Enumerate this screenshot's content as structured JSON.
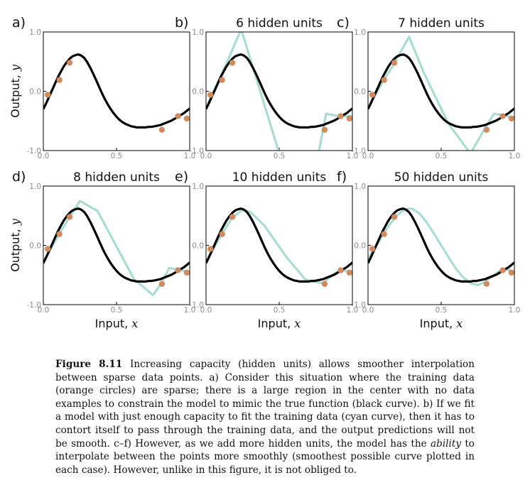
{
  "chart_data": {
    "type": "line",
    "xlim": [
      0,
      1
    ],
    "ylim": [
      -1,
      1
    ],
    "x_ticks": [
      "0.0",
      "0.5",
      "1.0"
    ],
    "y_ticks": [
      "1.0",
      "0.0",
      "-1.0"
    ],
    "xlabel": "Input, ",
    "xlabel_var": "x",
    "ylabel": "Output, ",
    "ylabel_var": "y",
    "true_function": {
      "color": "#000000",
      "x": [
        0,
        0.02,
        0.04,
        0.06,
        0.08,
        0.1,
        0.12,
        0.14,
        0.16,
        0.18,
        0.2,
        0.22,
        0.24,
        0.26,
        0.28,
        0.3,
        0.32,
        0.34,
        0.36,
        0.38,
        0.4,
        0.42,
        0.44,
        0.46,
        0.48,
        0.5,
        0.52,
        0.54,
        0.56,
        0.58,
        0.6,
        0.62,
        0.64,
        0.66,
        0.68,
        0.7,
        0.72,
        0.74,
        0.76,
        0.78,
        0.8,
        0.82,
        0.84,
        0.86,
        0.88,
        0.9,
        0.92,
        0.94,
        0.96,
        0.98,
        1.0
      ],
      "y": [
        -0.3,
        -0.2,
        -0.09,
        0.02,
        0.13,
        0.24,
        0.33,
        0.42,
        0.49,
        0.55,
        0.59,
        0.61,
        0.62,
        0.6,
        0.56,
        0.49,
        0.4,
        0.3,
        0.19,
        0.08,
        -0.03,
        -0.13,
        -0.22,
        -0.3,
        -0.37,
        -0.43,
        -0.48,
        -0.52,
        -0.55,
        -0.57,
        -0.59,
        -0.6,
        -0.61,
        -0.61,
        -0.61,
        -0.61,
        -0.6,
        -0.6,
        -0.59,
        -0.58,
        -0.57,
        -0.55,
        -0.53,
        -0.51,
        -0.49,
        -0.46,
        -0.43,
        -0.4,
        -0.37,
        -0.33,
        -0.29
      ]
    },
    "training_data": {
      "color": "#d08a5f",
      "x": [
        0.03,
        0.11,
        0.18,
        0.81,
        0.92,
        0.98
      ],
      "y": [
        -0.06,
        0.19,
        0.48,
        -0.65,
        -0.42,
        -0.46
      ]
    },
    "model_color": "#a9ddd2",
    "panels": [
      {
        "letter": "a)",
        "title": "",
        "model": null
      },
      {
        "letter": "b)",
        "title": "6 hidden units",
        "model": {
          "x": [
            0,
            0.1,
            0.18,
            0.24,
            0.55,
            0.75,
            0.82,
            0.91,
            1.0
          ],
          "y": [
            -0.28,
            0.25,
            0.7,
            1.05,
            -1.45,
            -1.3,
            -0.38,
            -0.42,
            -0.42
          ]
        }
      },
      {
        "letter": "c)",
        "title": "7 hidden units",
        "model": {
          "x": [
            0,
            0.11,
            0.18,
            0.28,
            0.38,
            0.55,
            0.7,
            0.8,
            0.86,
            0.92,
            1.0
          ],
          "y": [
            -0.28,
            0.2,
            0.47,
            0.92,
            0.32,
            -0.55,
            -1.05,
            -0.62,
            -0.38,
            -0.4,
            -0.45
          ]
        }
      },
      {
        "letter": "d)",
        "title": "8 hidden units",
        "model": {
          "x": [
            0,
            0.11,
            0.18,
            0.25,
            0.37,
            0.62,
            0.75,
            0.81,
            0.86,
            0.92,
            1.0
          ],
          "y": [
            -0.28,
            0.2,
            0.48,
            0.75,
            0.58,
            -0.57,
            -0.84,
            -0.62,
            -0.38,
            -0.41,
            -0.45
          ]
        }
      },
      {
        "letter": "e)",
        "title": "10 hidden units",
        "model": {
          "x": [
            0,
            0.11,
            0.18,
            0.25,
            0.3,
            0.4,
            0.55,
            0.68,
            0.8,
            0.88,
            0.92,
            1.0
          ],
          "y": [
            -0.28,
            0.2,
            0.47,
            0.6,
            0.57,
            0.33,
            -0.2,
            -0.58,
            -0.64,
            -0.47,
            -0.42,
            -0.44
          ]
        }
      },
      {
        "letter": "f)",
        "title": "50 hidden units",
        "model": {
          "x": [
            0,
            0.05,
            0.1,
            0.15,
            0.2,
            0.25,
            0.3,
            0.35,
            0.4,
            0.45,
            0.5,
            0.55,
            0.6,
            0.65,
            0.7,
            0.75,
            0.8,
            0.85,
            0.9,
            0.95,
            1.0
          ],
          "y": [
            -0.22,
            -0.03,
            0.17,
            0.36,
            0.51,
            0.61,
            0.62,
            0.54,
            0.39,
            0.2,
            0.0,
            -0.2,
            -0.39,
            -0.54,
            -0.64,
            -0.67,
            -0.62,
            -0.52,
            -0.43,
            -0.41,
            -0.44
          ]
        }
      }
    ]
  },
  "caption": {
    "figure_label": "Figure 8.11",
    "segments": [
      {
        "text": " Increasing capacity (hidden units) allows smoother interpolation between sparse data points.  a) Consider this situation where the training data (orange circles) are sparse; there is a large region in the center with no data examples to constrain the model to mimic the true function (black curve). b) If we fit a model with just enough capacity to fit the training data (cyan curve), then it has to contort itself to pass through the training data, and the output predictions will not be smooth. c–f) However, as we add more hidden units, the model has the ",
        "italic": false
      },
      {
        "text": "ability",
        "italic": true
      },
      {
        "text": " to interpolate between the points more smoothly (smoothest possible curve plotted in each case). However, unlike in this figure, it is not obliged to.",
        "italic": false
      }
    ]
  }
}
